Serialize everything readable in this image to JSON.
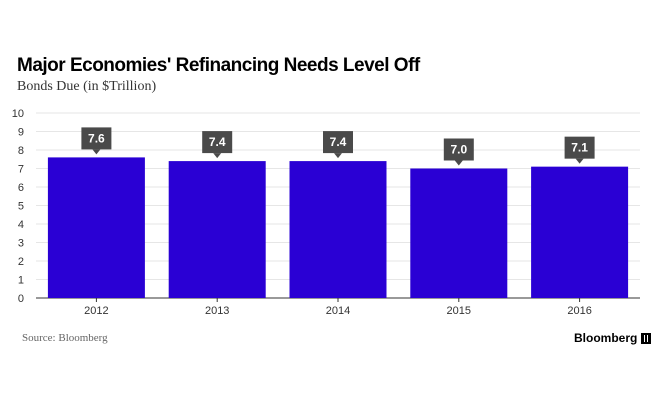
{
  "chart_data": {
    "type": "bar",
    "title": "Major Economies' Refinancing Needs Level Off",
    "subtitle": "Bonds Due (in $Trillion)",
    "categories": [
      "2012",
      "2013",
      "2014",
      "2015",
      "2016"
    ],
    "values": [
      7.6,
      7.4,
      7.4,
      7.0,
      7.1
    ],
    "data_labels": [
      "7.6",
      "7.4",
      "7.4",
      "7.0",
      "7.1"
    ],
    "y_ticks": [
      "0",
      "1",
      "2",
      "3",
      "4",
      "5",
      "6",
      "7",
      "8",
      "9",
      "10"
    ],
    "ylim": [
      0,
      10
    ],
    "xlabel": "",
    "ylabel": "",
    "grid": true,
    "bar_color": "#2a00d4",
    "label_box_color": "#4a4a4a"
  },
  "footer": {
    "source": "Source: Bloomberg",
    "brand": "Bloomberg"
  }
}
